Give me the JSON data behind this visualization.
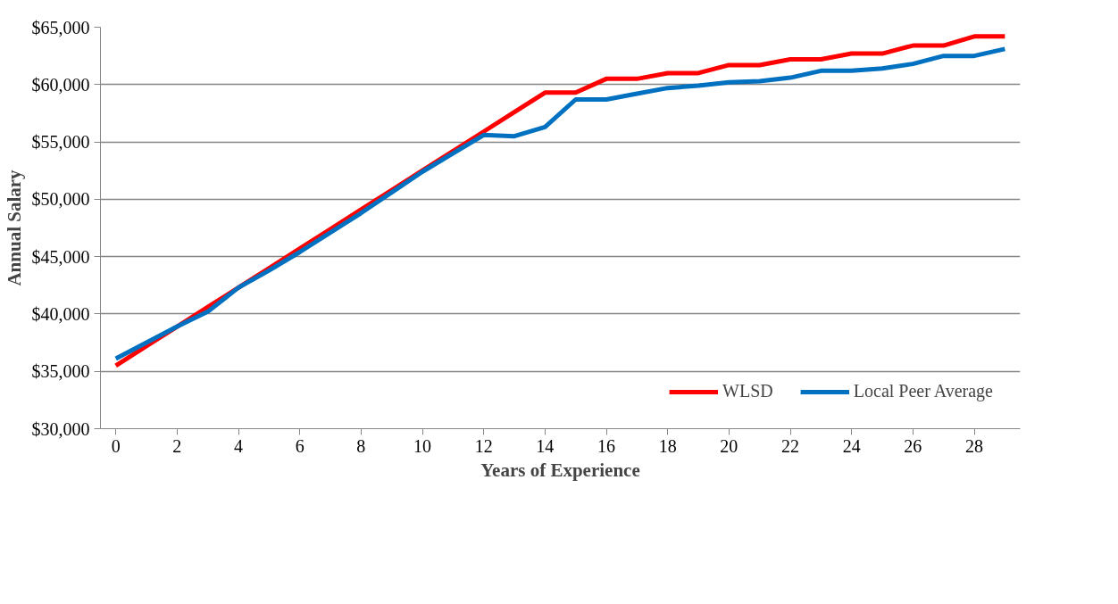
{
  "chart_data": {
    "type": "line",
    "xlabel": "Years of Experience",
    "ylabel": "Annual Salary",
    "x": [
      0,
      1,
      2,
      3,
      4,
      5,
      6,
      7,
      8,
      9,
      10,
      11,
      12,
      13,
      14,
      15,
      16,
      17,
      18,
      19,
      20,
      21,
      22,
      23,
      24,
      25,
      26,
      27,
      28,
      29
    ],
    "series": [
      {
        "name": "WLSD",
        "color": "#ff0000",
        "values": [
          35500,
          37200,
          38900,
          40600,
          42300,
          44000,
          45700,
          47400,
          49100,
          50800,
          52500,
          54200,
          55900,
          57600,
          59300,
          59300,
          60500,
          60500,
          61000,
          61000,
          61700,
          61700,
          62200,
          62200,
          62700,
          62700,
          63400,
          63400,
          64200,
          64200
        ]
      },
      {
        "name": "Local Peer Average",
        "color": "#0070c0",
        "values": [
          36100,
          37500,
          38900,
          40200,
          42300,
          43800,
          45400,
          47100,
          48800,
          50600,
          52400,
          54000,
          55600,
          55500,
          56300,
          58700,
          58700,
          59200,
          59700,
          59900,
          60200,
          60300,
          60600,
          61200,
          61200,
          61400,
          61800,
          62500,
          62500,
          63100
        ]
      }
    ],
    "xlim": [
      -0.5,
      29.5
    ],
    "xticks": [
      0,
      2,
      4,
      6,
      8,
      10,
      12,
      14,
      16,
      18,
      20,
      22,
      24,
      26,
      28
    ],
    "ylim": [
      30000,
      65000
    ],
    "yticks": [
      {
        "value": 30000,
        "label": "$30,000"
      },
      {
        "value": 35000,
        "label": "$35,000"
      },
      {
        "value": 40000,
        "label": "$40,000"
      },
      {
        "value": 45000,
        "label": "$45,000"
      },
      {
        "value": 50000,
        "label": "$50,000"
      },
      {
        "value": 55000,
        "label": "$55,000"
      },
      {
        "value": 60000,
        "label": "$60,000"
      },
      {
        "value": 65000,
        "label": "$65,000"
      }
    ],
    "grid": "y",
    "legend": "bottom right",
    "marker": "none",
    "line_style": "solid"
  }
}
